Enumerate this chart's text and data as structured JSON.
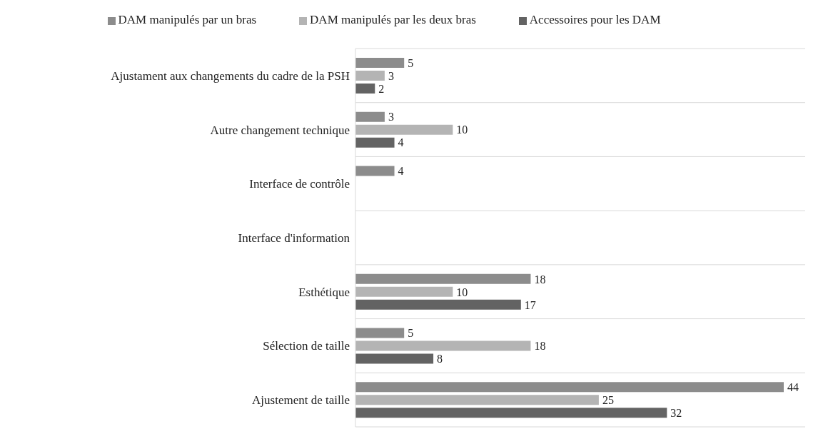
{
  "chart_data": {
    "type": "bar",
    "orientation": "horizontal",
    "categories": [
      "Ajustament aux changements du cadre de la PSH",
      "Autre changement technique",
      "Interface de contrôle",
      "Interface d'information",
      "Esthétique",
      "Sélection de taille",
      "Ajustement de taille"
    ],
    "series": [
      {
        "name": "DAM manipulés par un bras",
        "color": "#8c8c8c",
        "values": [
          5,
          3,
          4,
          null,
          18,
          5,
          44
        ]
      },
      {
        "name": "DAM manipulés par les deux bras",
        "color": "#b4b4b4",
        "values": [
          3,
          10,
          null,
          null,
          10,
          18,
          25
        ]
      },
      {
        "name": "Accessoires pour les DAM",
        "color": "#636363",
        "values": [
          2,
          4,
          null,
          null,
          17,
          8,
          32
        ]
      }
    ],
    "data_labels": true,
    "grid": "y",
    "legend": "top",
    "tick_labels": "y"
  }
}
